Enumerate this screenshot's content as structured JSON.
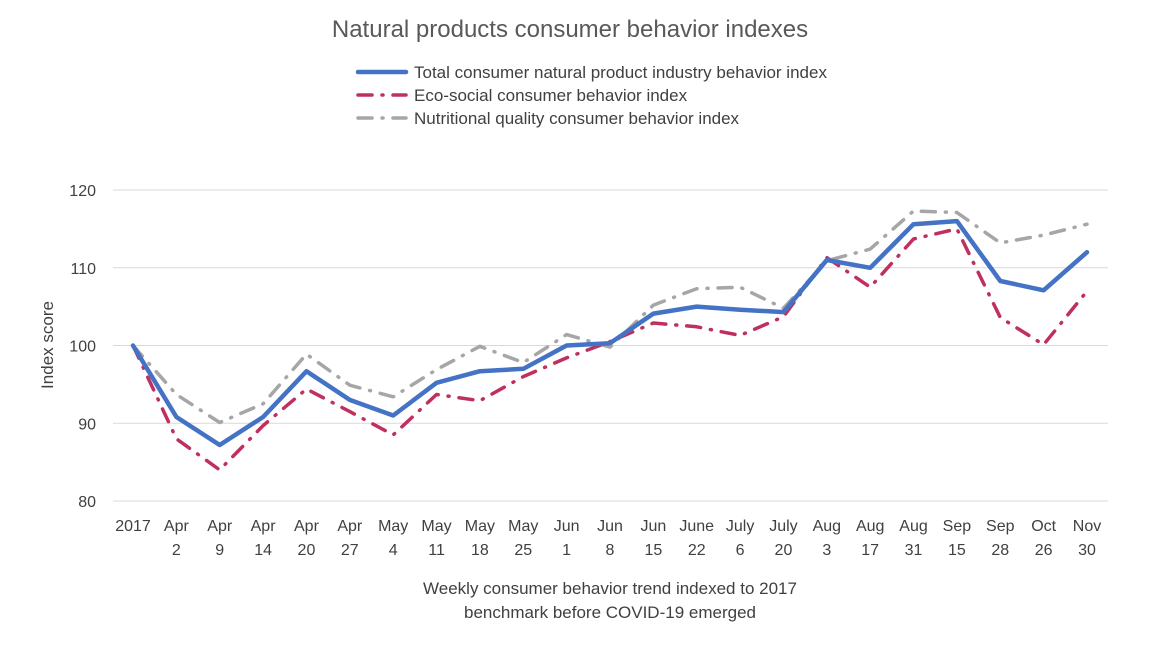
{
  "chart_data": {
    "type": "line",
    "title": "Natural products consumer behavior indexes",
    "xlabel": "Weekly consumer behavior trend indexed to 2017\nbenchmark before COVID-19 emerged",
    "ylabel": "Index score",
    "ylim": [
      80,
      120
    ],
    "yticks": [
      80,
      90,
      100,
      110,
      120
    ],
    "grid": true,
    "legend": "top",
    "categories": [
      [
        "2017"
      ],
      [
        "Apr",
        "2"
      ],
      [
        "Apr",
        "9"
      ],
      [
        "Apr",
        "14"
      ],
      [
        "Apr",
        "20"
      ],
      [
        "Apr",
        "27"
      ],
      [
        "May",
        "4"
      ],
      [
        "May",
        "11"
      ],
      [
        "May",
        "18"
      ],
      [
        "May",
        "25"
      ],
      [
        "Jun",
        "1"
      ],
      [
        "Jun",
        "8"
      ],
      [
        "Jun",
        "15"
      ],
      [
        "June",
        "22"
      ],
      [
        "July",
        "6"
      ],
      [
        "July",
        "20"
      ],
      [
        "Aug",
        "3"
      ],
      [
        "Aug",
        "17"
      ],
      [
        "Aug",
        "31"
      ],
      [
        "Sep",
        "15"
      ],
      [
        "Sep",
        "28"
      ],
      [
        "Oct",
        "26"
      ],
      [
        "Nov",
        "30"
      ]
    ],
    "series": [
      {
        "name": "Total consumer natural product industry behavior index",
        "color": "#4472C4",
        "style": "solid",
        "values": [
          100,
          90.8,
          87.2,
          90.8,
          96.7,
          93.0,
          91.0,
          95.2,
          96.7,
          97.0,
          100.0,
          100.3,
          104.1,
          105.0,
          104.6,
          104.3,
          111.0,
          110.0,
          115.6,
          116.0,
          108.3,
          107.1,
          112.0
        ]
      },
      {
        "name": "Eco-social consumer behavior index",
        "color": "#C0305E",
        "style": "dashdot",
        "values": [
          100,
          88.0,
          84.0,
          89.7,
          94.4,
          91.5,
          88.5,
          93.7,
          92.9,
          96.0,
          98.4,
          100.5,
          102.9,
          102.4,
          101.3,
          103.7,
          111.3,
          107.5,
          113.7,
          115.0,
          103.6,
          100.1,
          107.0
        ]
      },
      {
        "name": "Nutritional quality consumer behavior index",
        "color": "#A6A6A6",
        "style": "dashdot",
        "values": [
          100,
          93.7,
          90.1,
          92.5,
          98.9,
          94.9,
          93.4,
          96.9,
          99.9,
          97.8,
          101.4,
          99.8,
          105.2,
          107.3,
          107.5,
          104.8,
          110.9,
          112.4,
          117.3,
          117.1,
          113.2,
          114.2,
          115.6
        ]
      }
    ]
  }
}
